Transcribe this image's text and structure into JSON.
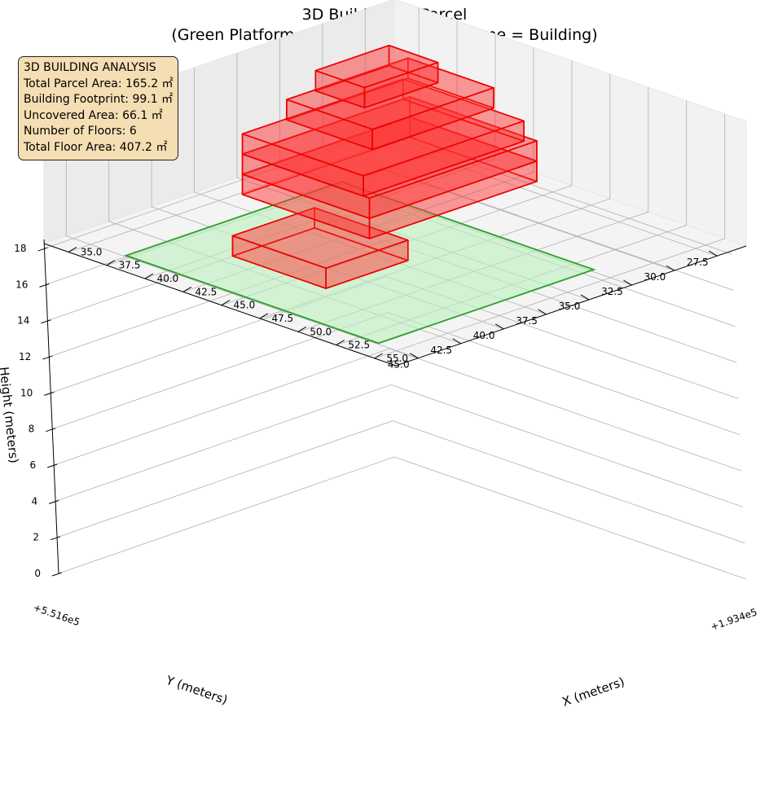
{
  "title": "3D Building on Parcel",
  "subtitle": "(Green Platform = Parcel Area, Red Volume = Building)",
  "info_box": {
    "heading": "3D BUILDING ANALYSIS",
    "parcel_area": "Total Parcel Area: 165.2 ㎡",
    "footprint": "Building Footprint: 99.1 ㎡",
    "uncovered": "Uncovered Area: 66.1 ㎡",
    "floors": "Number of Floors: 6",
    "floor_area": "Total Floor Area: 407.2 ㎡"
  },
  "chart_data": {
    "type": "3d-bar",
    "title": "3D Building on Parcel",
    "subtitle": "(Green Platform = Parcel Area, Red Volume = Building)",
    "xlabel": "X (meters)",
    "ylabel": "Y (meters)",
    "zlabel": "Height (meters)",
    "x_offset_label": "+1.934e5",
    "y_offset_label": "+5.516e5",
    "xlim": [
      33.4,
      56.4
    ],
    "ylim": [
      25.8,
      46.3
    ],
    "zlim": [
      0,
      18.5
    ],
    "x_ticks": [
      "35.0",
      "37.5",
      "40.0",
      "42.5",
      "45.0",
      "47.5",
      "50.0",
      "52.5",
      "55.0"
    ],
    "y_ticks": [
      "27.5",
      "30.0",
      "32.5",
      "35.0",
      "37.5",
      "40.0",
      "42.5",
      "45.0"
    ],
    "z_ticks": [
      "0",
      "2",
      "4",
      "6",
      "8",
      "10",
      "12",
      "14",
      "16",
      "18"
    ],
    "view": {
      "elev": 25,
      "azim": 45
    },
    "grid": true,
    "colors": {
      "parcel_fill": "#bdf0bd",
      "parcel_edge": "#2ca02c",
      "building_fill": "#ff3333",
      "building_edge": "#ee0000",
      "pane": "#f2f2f2",
      "grid": "#b0b0b0",
      "info_bg": "#f5deb3"
    },
    "parcel": {
      "x": [
        37.2,
        53.7
      ],
      "y": [
        32.3,
        44.9
      ],
      "z": 0
    },
    "floors": [
      {
        "floor": 1,
        "x": [
          40.7,
          46.8
        ],
        "y": [
          37.0,
          41.8
        ],
        "z": [
          0,
          3
        ]
      },
      {
        "floor": 2,
        "x": [
          37.1,
          45.4
        ],
        "y": [
          28.2,
          38.0
        ],
        "z": [
          3,
          6
        ]
      },
      {
        "floor": 3,
        "x": [
          37.1,
          45.4
        ],
        "y": [
          28.2,
          38.0
        ],
        "z": [
          6,
          9
        ]
      },
      {
        "floor": 4,
        "x": [
          37.1,
          45.0
        ],
        "y": [
          28.6,
          38.0
        ],
        "z": [
          9,
          12
        ]
      },
      {
        "floor": 5,
        "x": [
          37.2,
          42.8
        ],
        "y": [
          28.4,
          35.5
        ],
        "z": [
          12,
          15
        ]
      },
      {
        "floor": 6,
        "x": [
          37.3,
          40.5
        ],
        "y": [
          29.6,
          33.9
        ],
        "z": [
          15,
          18
        ]
      }
    ]
  }
}
